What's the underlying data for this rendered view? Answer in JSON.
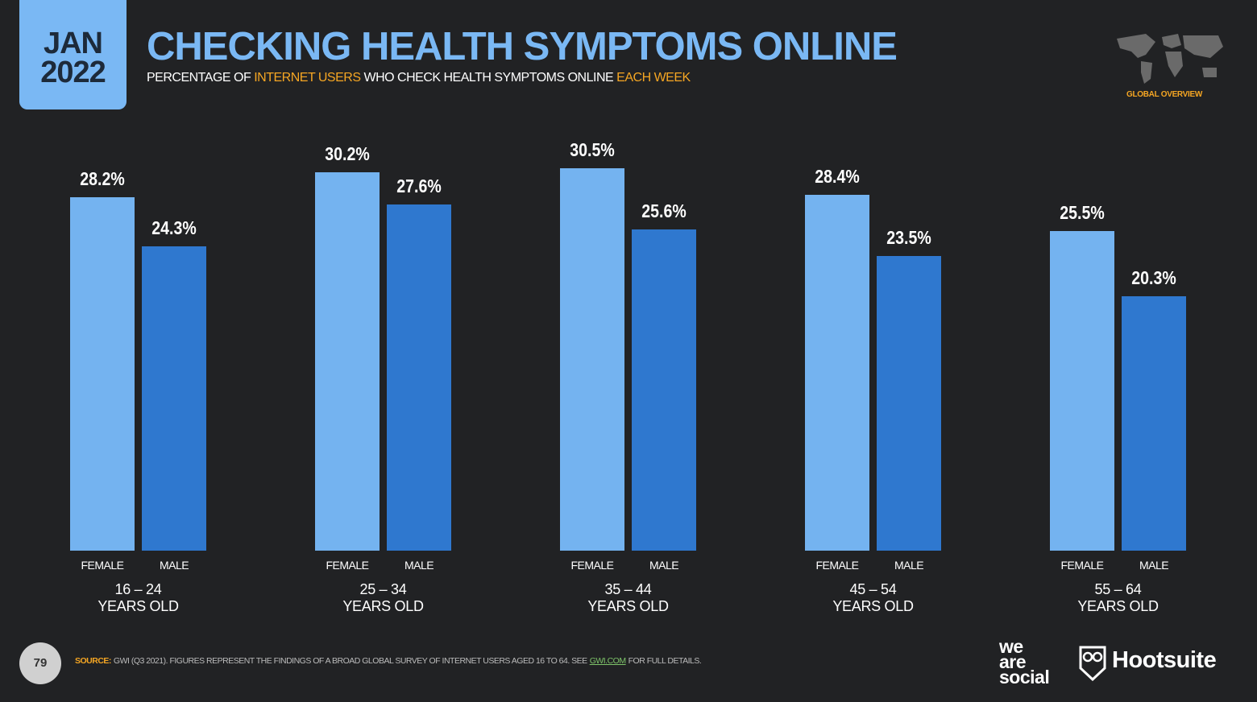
{
  "header": {
    "month": "JAN",
    "year": "2022",
    "logo_caption": "GLOBAL OVERVIEW",
    "subtitle_parts": [
      "PERCENTAGE OF",
      "INTERNET USERS",
      "WHO CHECK HEALTH SYMPTOMS ONLINE",
      "EACH WEEK"
    ]
  },
  "chart_data": {
    "type": "bar",
    "title": "CHECKING HEALTH SYMPTOMS ONLINE",
    "categories": [
      "16 – 24\nYEARS OLD",
      "25 – 34\nYEARS OLD",
      "35 – 44\nYEARS OLD",
      "45 – 54\nYEARS OLD",
      "55 – 64\nYEARS OLD"
    ],
    "series": [
      {
        "name": "FEMALE",
        "color": "#74b3f0",
        "values": [
          28.2,
          30.2,
          30.5,
          28.4,
          25.5
        ],
        "value_labels": [
          "28.2%",
          "30.2%",
          "30.5%",
          "28.4%",
          "25.5%"
        ]
      },
      {
        "name": "MALE",
        "color": "#2f78cf",
        "values": [
          24.3,
          27.6,
          25.6,
          23.5,
          20.3
        ],
        "value_labels": [
          "24.3%",
          "27.6%",
          "25.6%",
          "23.5%",
          "20.3%"
        ]
      }
    ]
  },
  "footer": {
    "page": "79",
    "source_head": "SOURCE:",
    "source_text": "GWI (Q3 2021). FIGURES REPRESENT THE FINDINGS OF A BROAD GLOBAL SURVEY OF INTERNET USERS AGED 16 TO 64. SEE",
    "source_link": "GWI.COM",
    "source_tail": "FOR FULL DETAILS.",
    "logo_lines": [
      "we",
      "are",
      "social"
    ],
    "brand": "Hootsuite"
  }
}
